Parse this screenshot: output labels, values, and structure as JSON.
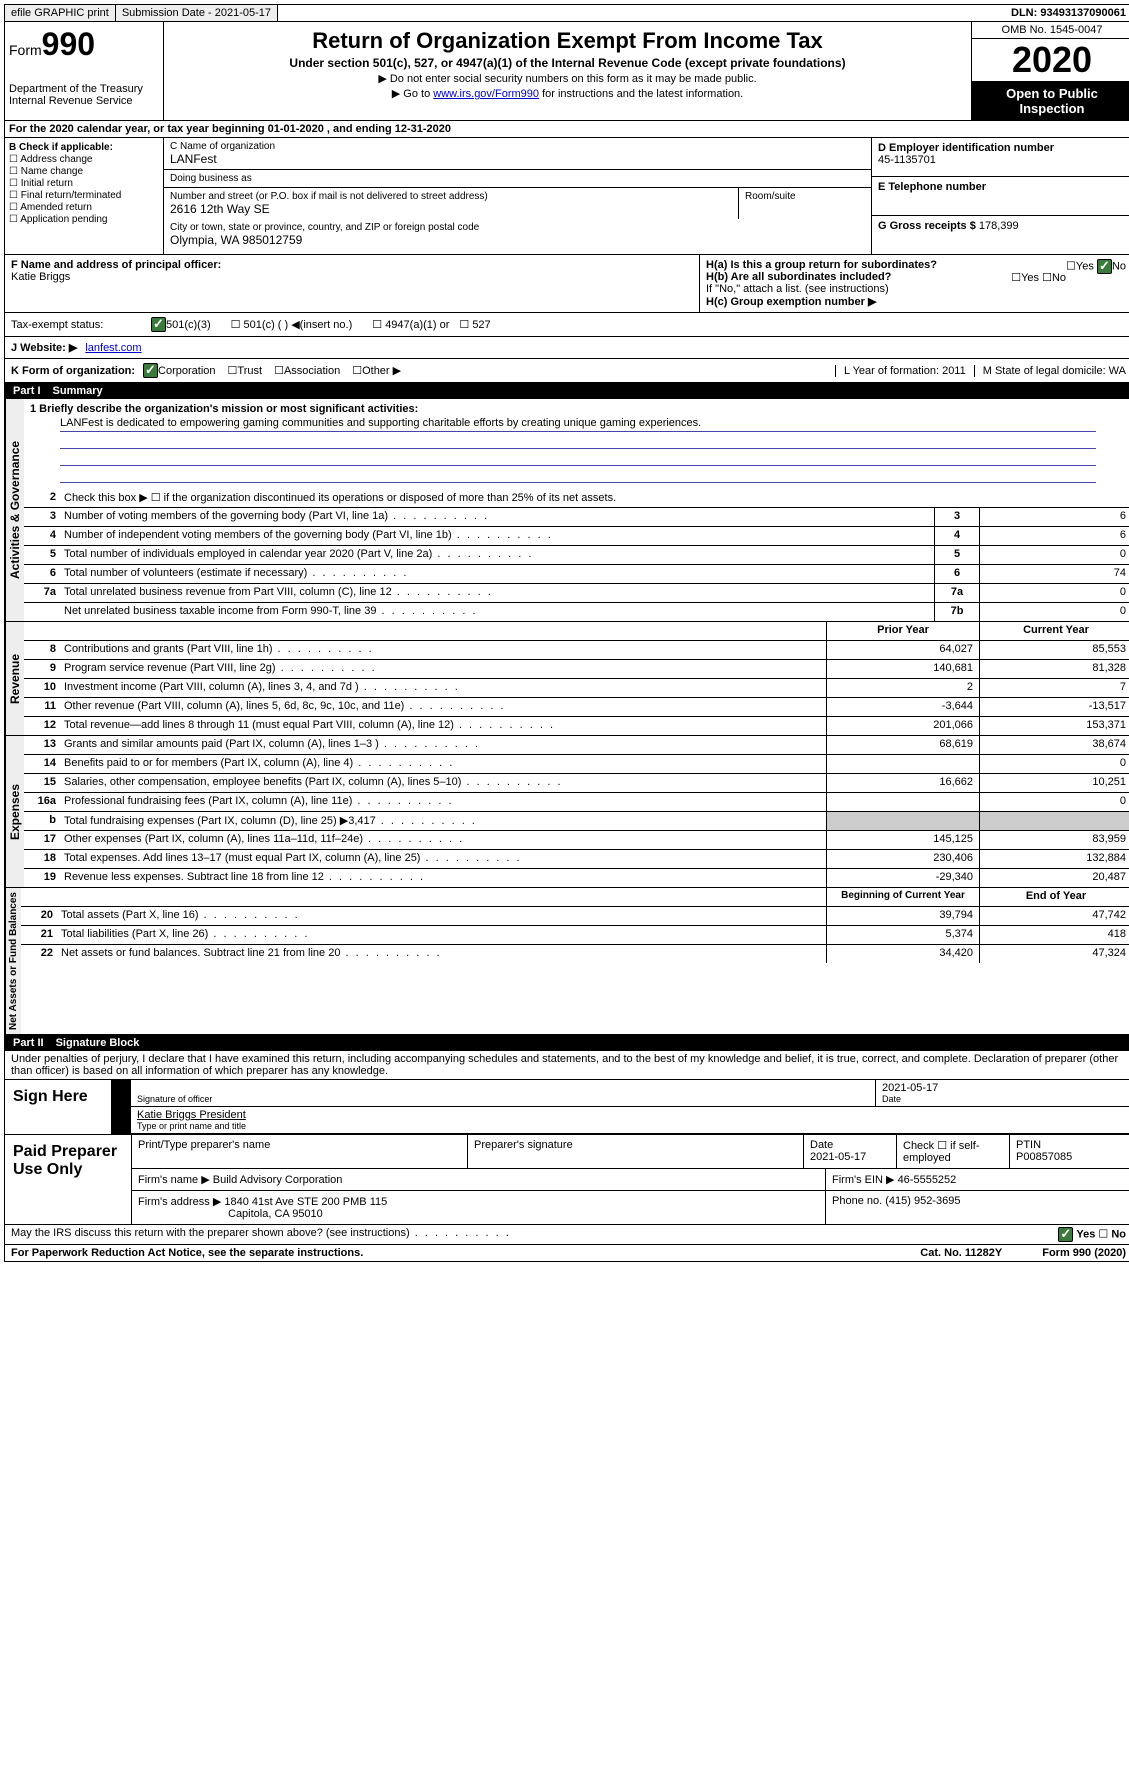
{
  "top": {
    "efile": "efile GRAPHIC print",
    "submission_label": "Submission Date - 2021-05-17",
    "dln": "DLN: 93493137090061"
  },
  "header": {
    "form_prefix": "Form",
    "form_number": "990",
    "dept": "Department of the Treasury\nInternal Revenue Service",
    "title": "Return of Organization Exempt From Income Tax",
    "subtitle": "Under section 501(c), 527, or 4947(a)(1) of the Internal Revenue Code (except private foundations)",
    "note1": "▶ Do not enter social security numbers on this form as it may be made public.",
    "note2_pre": "▶ Go to ",
    "note2_link": "www.irs.gov/Form990",
    "note2_post": " for instructions and the latest information.",
    "omb": "OMB No. 1545-0047",
    "year": "2020",
    "open": "Open to Public Inspection"
  },
  "rowA": "For the 2020 calendar year, or tax year beginning 01-01-2020   , and ending 12-31-2020",
  "boxB": {
    "header": "B Check if applicable:",
    "items": [
      "Address change",
      "Name change",
      "Initial return",
      "Final return/terminated",
      "Amended return",
      "Application pending"
    ]
  },
  "boxC": {
    "name_label": "C Name of organization",
    "name": "LANFest",
    "dba_label": "Doing business as",
    "addr_label": "Number and street (or P.O. box if mail is not delivered to street address)",
    "addr": "2616 12th Way SE",
    "suite_label": "Room/suite",
    "city_label": "City or town, state or province, country, and ZIP or foreign postal code",
    "city": "Olympia, WA  985012759"
  },
  "boxD": {
    "label": "D Employer identification number",
    "val": "45-1135701"
  },
  "boxE": {
    "label": "E Telephone number",
    "val": ""
  },
  "boxG": {
    "label": "G Gross receipts $ ",
    "val": "178,399"
  },
  "boxF": {
    "label": "F  Name and address of principal officer:",
    "val": "Katie Briggs"
  },
  "boxH": {
    "a": "H(a)  Is this a group return for subordinates?",
    "b": "H(b)  Are all subordinates included?",
    "b_note": "If \"No,\" attach a list. (see instructions)",
    "c": "H(c)  Group exemption number ▶"
  },
  "tax_status": {
    "label": "Tax-exempt status:",
    "opts": [
      "501(c)(3)",
      "501(c) (  ) ◀(insert no.)",
      "4947(a)(1) or",
      "527"
    ]
  },
  "website": {
    "label": "J Website: ▶",
    "val": "lanfest.com"
  },
  "rowK": {
    "label": "K Form of organization:",
    "opts": [
      "Corporation",
      "Trust",
      "Association",
      "Other ▶"
    ],
    "L": "L Year of formation: 2011",
    "M": "M State of legal domicile: WA"
  },
  "part1": {
    "title": "Part I",
    "name": "Summary",
    "q1_label": "1  Briefly describe the organization's mission or most significant activities:",
    "q1_text": "LANFest is dedicated to empowering gaming communities and supporting charitable efforts by creating unique gaming experiences.",
    "q2": "Check this box ▶ ☐  if the organization discontinued its operations or disposed of more than 25% of its net assets.",
    "lines_gov": [
      {
        "n": "3",
        "d": "Number of voting members of the governing body (Part VI, line 1a)",
        "box": "3",
        "v": "6"
      },
      {
        "n": "4",
        "d": "Number of independent voting members of the governing body (Part VI, line 1b)",
        "box": "4",
        "v": "6"
      },
      {
        "n": "5",
        "d": "Total number of individuals employed in calendar year 2020 (Part V, line 2a)",
        "box": "5",
        "v": "0"
      },
      {
        "n": "6",
        "d": "Total number of volunteers (estimate if necessary)",
        "box": "6",
        "v": "74"
      },
      {
        "n": "7a",
        "d": "Total unrelated business revenue from Part VIII, column (C), line 12",
        "box": "7a",
        "v": "0"
      },
      {
        "n": "",
        "d": "Net unrelated business taxable income from Form 990-T, line 39",
        "box": "7b",
        "v": "0"
      }
    ],
    "col_prior": "Prior Year",
    "col_current": "Current Year",
    "lines_rev": [
      {
        "n": "8",
        "d": "Contributions and grants (Part VIII, line 1h)",
        "p": "64,027",
        "c": "85,553"
      },
      {
        "n": "9",
        "d": "Program service revenue (Part VIII, line 2g)",
        "p": "140,681",
        "c": "81,328"
      },
      {
        "n": "10",
        "d": "Investment income (Part VIII, column (A), lines 3, 4, and 7d )",
        "p": "2",
        "c": "7"
      },
      {
        "n": "11",
        "d": "Other revenue (Part VIII, column (A), lines 5, 6d, 8c, 9c, 10c, and 11e)",
        "p": "-3,644",
        "c": "-13,517"
      },
      {
        "n": "12",
        "d": "Total revenue—add lines 8 through 11 (must equal Part VIII, column (A), line 12)",
        "p": "201,066",
        "c": "153,371"
      }
    ],
    "lines_exp": [
      {
        "n": "13",
        "d": "Grants and similar amounts paid (Part IX, column (A), lines 1–3 )",
        "p": "68,619",
        "c": "38,674"
      },
      {
        "n": "14",
        "d": "Benefits paid to or for members (Part IX, column (A), line 4)",
        "p": "",
        "c": "0"
      },
      {
        "n": "15",
        "d": "Salaries, other compensation, employee benefits (Part IX, column (A), lines 5–10)",
        "p": "16,662",
        "c": "10,251"
      },
      {
        "n": "16a",
        "d": "Professional fundraising fees (Part IX, column (A), line 11e)",
        "p": "",
        "c": "0"
      },
      {
        "n": "b",
        "d": "Total fundraising expenses (Part IX, column (D), line 25) ▶3,417",
        "p": "",
        "c": "",
        "grey": true
      },
      {
        "n": "17",
        "d": "Other expenses (Part IX, column (A), lines 11a–11d, 11f–24e)",
        "p": "145,125",
        "c": "83,959"
      },
      {
        "n": "18",
        "d": "Total expenses. Add lines 13–17 (must equal Part IX, column (A), line 25)",
        "p": "230,406",
        "c": "132,884"
      },
      {
        "n": "19",
        "d": "Revenue less expenses. Subtract line 18 from line 12",
        "p": "-29,340",
        "c": "20,487"
      }
    ],
    "col_begin": "Beginning of Current Year",
    "col_end": "End of Year",
    "lines_net": [
      {
        "n": "20",
        "d": "Total assets (Part X, line 16)",
        "p": "39,794",
        "c": "47,742"
      },
      {
        "n": "21",
        "d": "Total liabilities (Part X, line 26)",
        "p": "5,374",
        "c": "418"
      },
      {
        "n": "22",
        "d": "Net assets or fund balances. Subtract line 21 from line 20",
        "p": "34,420",
        "c": "47,324"
      }
    ]
  },
  "part2": {
    "title": "Part II",
    "name": "Signature Block",
    "declaration": "Under penalties of perjury, I declare that I have examined this return, including accompanying schedules and statements, and to the best of my knowledge and belief, it is true, correct, and complete. Declaration of preparer (other than officer) is based on all information of which preparer has any knowledge."
  },
  "sign": {
    "here": "Sign Here",
    "sig_officer": "Signature of officer",
    "date": "2021-05-17",
    "date_lbl": "Date",
    "name": "Katie Briggs  President",
    "name_lbl": "Type or print name and title"
  },
  "prep": {
    "title": "Paid Preparer Use Only",
    "h1": "Print/Type preparer's name",
    "h2": "Preparer's signature",
    "h3": "Date",
    "h3v": "2021-05-17",
    "h4": "Check ☐ if self-employed",
    "h5": "PTIN",
    "h5v": "P00857085",
    "firm_lbl": "Firm's name    ▶",
    "firm": "Build Advisory Corporation",
    "ein_lbl": "Firm's EIN ▶",
    "ein": "46-5555252",
    "addr_lbl": "Firm's address ▶",
    "addr1": "1840 41st Ave STE 200 PMB 115",
    "addr2": "Capitola, CA  95010",
    "phone_lbl": "Phone no.",
    "phone": "(415) 952-3695"
  },
  "footer": {
    "q": "May the IRS discuss this return with the preparer shown above? (see instructions)",
    "paperwork": "For Paperwork Reduction Act Notice, see the separate instructions.",
    "cat": "Cat. No. 11282Y",
    "form": "Form 990 (2020)"
  },
  "labels": {
    "gov": "Activities & Governance",
    "rev": "Revenue",
    "exp": "Expenses",
    "net": "Net Assets or Fund Balances",
    "yes": "Yes",
    "no": "No"
  }
}
